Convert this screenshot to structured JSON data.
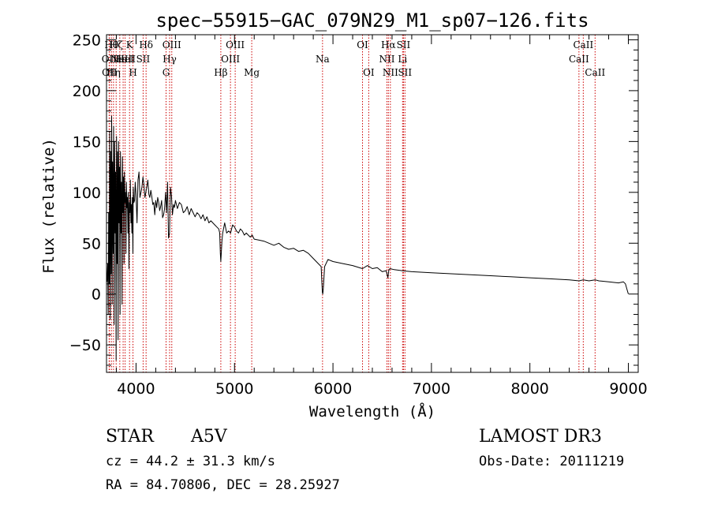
{
  "chart_data": {
    "type": "line",
    "title": "spec−55915−GAC_079N29_M1_sp07−126.fits",
    "xlabel": "Wavelength (Å)",
    "ylabel": "Flux (relative)",
    "xlim": [
      3700,
      9100
    ],
    "ylim": [
      -77,
      255
    ],
    "x_ticks": [
      4000,
      5000,
      6000,
      7000,
      8000,
      9000
    ],
    "y_ticks": [
      -50,
      0,
      50,
      100,
      150,
      200,
      250
    ],
    "grid": false,
    "series": [
      {
        "name": "spectrum",
        "x": [
          3705,
          3712,
          3718,
          3722,
          3728,
          3732,
          3738,
          3742,
          3748,
          3752,
          3758,
          3762,
          3768,
          3772,
          3778,
          3782,
          3788,
          3792,
          3798,
          3802,
          3808,
          3812,
          3818,
          3822,
          3828,
          3832,
          3838,
          3842,
          3848,
          3852,
          3858,
          3862,
          3868,
          3872,
          3878,
          3882,
          3888,
          3892,
          3898,
          3902,
          3908,
          3912,
          3918,
          3922,
          3928,
          3932,
          3938,
          3942,
          3948,
          3952,
          3958,
          3962,
          3968,
          3972,
          3978,
          3985,
          3992,
          4000,
          4010,
          4020,
          4030,
          4040,
          4050,
          4060,
          4070,
          4080,
          4090,
          4100,
          4110,
          4120,
          4130,
          4140,
          4150,
          4160,
          4170,
          4180,
          4190,
          4200,
          4210,
          4220,
          4230,
          4240,
          4250,
          4260,
          4270,
          4280,
          4290,
          4300,
          4310,
          4320,
          4330,
          4340,
          4350,
          4360,
          4370,
          4380,
          4390,
          4400,
          4420,
          4440,
          4460,
          4480,
          4500,
          4520,
          4540,
          4560,
          4580,
          4600,
          4620,
          4640,
          4660,
          4680,
          4700,
          4720,
          4740,
          4760,
          4780,
          4800,
          4820,
          4840,
          4850,
          4856,
          4861,
          4866,
          4872,
          4880,
          4900,
          4920,
          4940,
          4960,
          4980,
          5000,
          5020,
          5040,
          5060,
          5080,
          5100,
          5120,
          5140,
          5160,
          5180,
          5200,
          5250,
          5300,
          5350,
          5400,
          5450,
          5500,
          5550,
          5600,
          5650,
          5700,
          5750,
          5800,
          5850,
          5880,
          5888,
          5892,
          5896,
          5900,
          5905,
          5915,
          5950,
          6000,
          6100,
          6200,
          6300,
          6350,
          6400,
          6450,
          6500,
          6540,
          6558,
          6563,
          6568,
          6580,
          6620,
          6700,
          6800,
          7000,
          7200,
          7400,
          7600,
          7800,
          8000,
          8200,
          8400,
          8500,
          8542,
          8600,
          8662,
          8700,
          8800,
          8900,
          8950,
          8970,
          8985,
          9000
        ],
        "values": [
          12,
          30,
          -20,
          80,
          10,
          160,
          -25,
          140,
          20,
          175,
          -10,
          130,
          40,
          165,
          -30,
          150,
          60,
          120,
          -65,
          155,
          30,
          140,
          -45,
          150,
          70,
          125,
          -20,
          140,
          60,
          110,
          -10,
          135,
          80,
          115,
          30,
          120,
          90,
          100,
          40,
          110,
          85,
          95,
          60,
          100,
          25,
          90,
          80,
          112,
          70,
          88,
          60,
          95,
          40,
          105,
          90,
          92,
          110,
          98,
          70,
          112,
          120,
          95,
          100,
          105,
          115,
          108,
          95,
          100,
          106,
          112,
          98,
          95,
          102,
          96,
          88,
          90,
          78,
          92,
          85,
          95,
          90,
          82,
          86,
          92,
          75,
          78,
          84,
          100,
          80,
          110,
          55,
          60,
          105,
          96,
          78,
          88,
          85,
          92,
          84,
          90,
          88,
          80,
          82,
          86,
          78,
          84,
          80,
          76,
          80,
          78,
          74,
          78,
          72,
          76,
          70,
          72,
          70,
          68,
          66,
          64,
          60,
          40,
          32,
          40,
          52,
          60,
          70,
          60,
          62,
          60,
          68,
          66,
          62,
          60,
          64,
          62,
          58,
          60,
          58,
          56,
          58,
          54,
          53,
          52,
          50,
          48,
          50,
          46,
          44,
          45,
          42,
          43,
          40,
          35,
          30,
          27,
          10,
          2,
          0,
          3,
          10,
          27,
          34,
          32,
          30,
          28,
          25,
          28,
          25,
          26,
          22,
          23,
          16,
          20,
          24,
          25,
          24,
          23,
          22,
          21,
          20,
          19,
          18,
          17,
          16,
          15,
          14,
          13,
          14,
          13,
          14,
          13,
          12,
          11,
          12,
          10,
          5,
          0
        ]
      }
    ],
    "line_marks": [
      {
        "wave": 3727,
        "label": "OII",
        "row": 2
      },
      {
        "wave": 3730,
        "label": "OII",
        "row": 3
      },
      {
        "wave": 3750,
        "label": "Hθ",
        "row": 1
      },
      {
        "wave": 3771,
        "label": "Hη",
        "row": 3
      },
      {
        "wave": 3798,
        "label": "Hζ",
        "row": 1
      },
      {
        "wave": 3835,
        "label": "Hε",
        "row": 2
      },
      {
        "wave": 3869,
        "label": "NeIII",
        "row": 2
      },
      {
        "wave": 3889,
        "label": "HeI",
        "row": 2
      },
      {
        "wave": 3934,
        "label": "K",
        "row": 1
      },
      {
        "wave": 3969,
        "label": "H",
        "row": 3
      },
      {
        "wave": 4072,
        "label": "SII",
        "row": 2
      },
      {
        "wave": 4102,
        "label": "Hδ",
        "row": 1
      },
      {
        "wave": 4305,
        "label": "G",
        "row": 3
      },
      {
        "wave": 4341,
        "label": "Hγ",
        "row": 2
      },
      {
        "wave": 4363,
        "label": "OIII",
        "row": 1
      },
      {
        "wave": 4861,
        "label": "Hβ",
        "row": 3
      },
      {
        "wave": 4959,
        "label": "OIII",
        "row": 2
      },
      {
        "wave": 5007,
        "label": "OIII",
        "row": 1
      },
      {
        "wave": 5175,
        "label": "Mg",
        "row": 3
      },
      {
        "wave": 5894,
        "label": "Na",
        "row": 2
      },
      {
        "wave": 6300,
        "label": "OI",
        "row": 1
      },
      {
        "wave": 6363,
        "label": "OI",
        "row": 3
      },
      {
        "wave": 6548,
        "label": "NII",
        "row": 2
      },
      {
        "wave": 6563,
        "label": "Hα",
        "row": 1
      },
      {
        "wave": 6583,
        "label": "NII",
        "row": 3
      },
      {
        "wave": 6707,
        "label": "Li",
        "row": 2
      },
      {
        "wave": 6716,
        "label": "SII",
        "row": 1
      },
      {
        "wave": 6731,
        "label": "SII",
        "row": 3
      },
      {
        "wave": 8498,
        "label": "CaII",
        "row": 2
      },
      {
        "wave": 8542,
        "label": "CaII",
        "row": 1
      },
      {
        "wave": 8662,
        "label": "CaII",
        "row": 3
      }
    ],
    "info": {
      "class": "STAR",
      "subclass": "A5V",
      "survey": "LAMOST DR3",
      "cz": "cz = 44.2 ± 31.3 km/s",
      "obs_date": "Obs-Date: 20111219",
      "radec": "RA =  84.70806, DEC =  28.25927"
    },
    "colors": {
      "spectrum": "#000000",
      "line_marker": "#cc0000",
      "axes": "#000000",
      "background": "#ffffff"
    }
  }
}
